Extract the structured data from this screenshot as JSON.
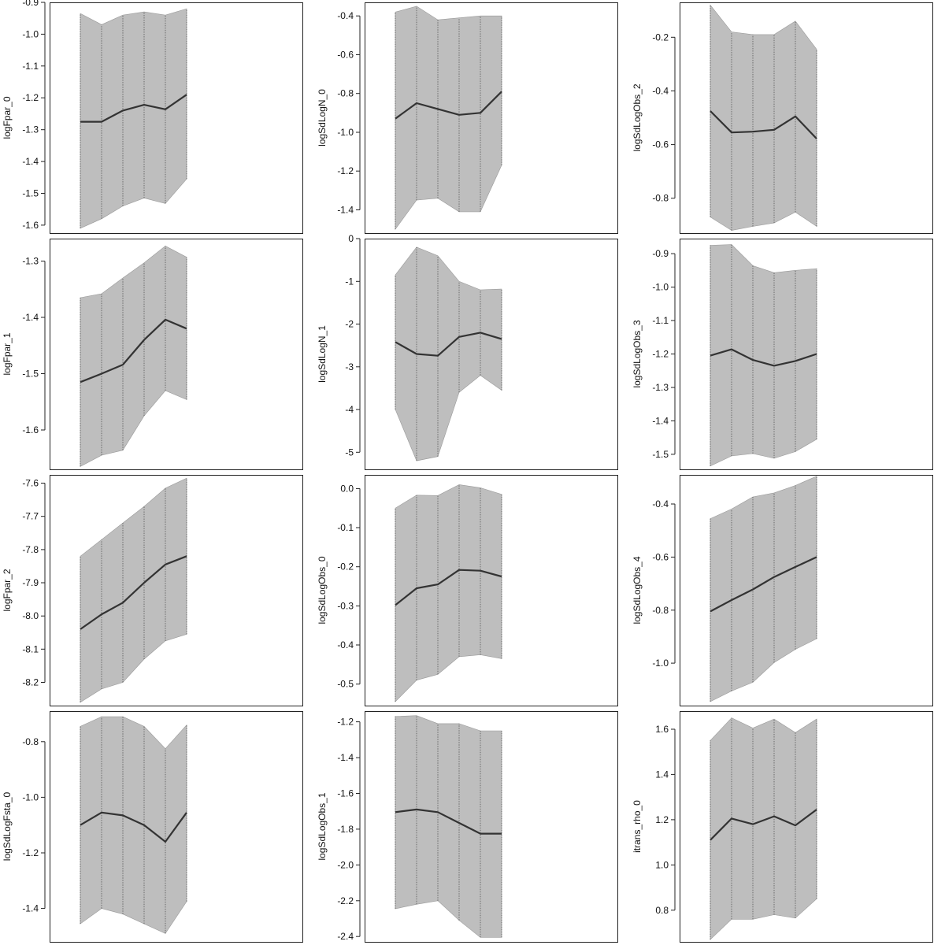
{
  "chart_data": [
    {
      "type": "area",
      "ylabel": "logFpar_0",
      "ylim": [
        -1.625,
        -0.9
      ],
      "yticks": [
        "-0.9",
        "-1.0",
        "-1.1",
        "-1.2",
        "-1.3",
        "-1.4",
        "-1.5",
        "-1.6"
      ],
      "x": [
        1,
        2,
        3,
        4,
        5,
        6
      ],
      "values": [
        -1.275,
        -1.275,
        -1.24,
        -1.222,
        -1.236,
        -1.19
      ],
      "lower": [
        -1.61,
        -1.58,
        -1.54,
        -1.515,
        -1.532,
        -1.455
      ],
      "upper": [
        -0.935,
        -0.97,
        -0.94,
        -0.93,
        -0.94,
        -0.92
      ]
    },
    {
      "type": "area",
      "ylabel": "logSdLogN_0",
      "ylim": [
        -1.52,
        -0.33
      ],
      "yticks": [
        "-0.4",
        "-0.6",
        "-0.8",
        "-1.0",
        "-1.2",
        "-1.4"
      ],
      "x": [
        1,
        2,
        3,
        4,
        5,
        6
      ],
      "values": [
        -0.93,
        -0.85,
        -0.88,
        -0.91,
        -0.9,
        -0.79
      ],
      "lower": [
        -1.5,
        -1.35,
        -1.34,
        -1.41,
        -1.41,
        -1.17
      ],
      "upper": [
        -0.38,
        -0.35,
        -0.42,
        -0.41,
        -0.4,
        -0.4
      ]
    },
    {
      "type": "area",
      "ylabel": "logSdLogObs_2",
      "ylim": [
        -0.93,
        -0.07
      ],
      "yticks": [
        "-0.2",
        "-0.4",
        "-0.6",
        "-0.8"
      ],
      "x": [
        1,
        2,
        3,
        4,
        5,
        6
      ],
      "values": [
        -0.475,
        -0.555,
        -0.552,
        -0.545,
        -0.495,
        -0.578
      ],
      "lower": [
        -0.87,
        -0.92,
        -0.905,
        -0.892,
        -0.852,
        -0.905
      ],
      "upper": [
        -0.08,
        -0.18,
        -0.19,
        -0.19,
        -0.14,
        -0.245
      ]
    },
    {
      "type": "area",
      "ylabel": "logFpar_1",
      "ylim": [
        -1.67,
        -1.26
      ],
      "yticks": [
        "-1.3",
        "-1.4",
        "-1.5",
        "-1.6"
      ],
      "x": [
        1,
        2,
        3,
        4,
        5,
        6
      ],
      "values": [
        -1.515,
        -1.5,
        -1.484,
        -1.44,
        -1.404,
        -1.42
      ],
      "lower": [
        -1.665,
        -1.645,
        -1.636,
        -1.575,
        -1.53,
        -1.546
      ],
      "upper": [
        -1.365,
        -1.358,
        -1.33,
        -1.303,
        -1.273,
        -1.293
      ]
    },
    {
      "type": "area",
      "ylabel": "logSdLogN_1",
      "ylim": [
        -5.4,
        0
      ],
      "yticks": [
        "0",
        "-1",
        "-2",
        "-3",
        "-4",
        "-5"
      ],
      "x": [
        1,
        2,
        3,
        4,
        5,
        6
      ],
      "values": [
        -2.42,
        -2.7,
        -2.74,
        -2.3,
        -2.2,
        -2.35
      ],
      "lower": [
        -4.0,
        -5.2,
        -5.1,
        -3.6,
        -3.2,
        -3.55
      ],
      "upper": [
        -0.85,
        -0.2,
        -0.4,
        -1.0,
        -1.2,
        -1.18
      ]
    },
    {
      "type": "area",
      "ylabel": "logSdLogObs_3",
      "ylim": [
        -1.545,
        -0.855
      ],
      "yticks": [
        "-0.9",
        "-1.0",
        "-1.1",
        "-1.2",
        "-1.3",
        "-1.4",
        "-1.5"
      ],
      "x": [
        1,
        2,
        3,
        4,
        5,
        6
      ],
      "values": [
        -1.205,
        -1.186,
        -1.218,
        -1.235,
        -1.221,
        -1.2
      ],
      "lower": [
        -1.535,
        -1.505,
        -1.498,
        -1.512,
        -1.492,
        -1.455
      ],
      "upper": [
        -0.875,
        -0.873,
        -0.936,
        -0.957,
        -0.95,
        -0.945
      ]
    },
    {
      "type": "area",
      "ylabel": "logFpar_2",
      "ylim": [
        -8.27,
        -7.575
      ],
      "yticks": [
        "-7.6",
        "-7.7",
        "-7.8",
        "-7.9",
        "-8.0",
        "-8.1",
        "-8.2"
      ],
      "x": [
        1,
        2,
        3,
        4,
        5,
        6
      ],
      "values": [
        -8.04,
        -7.995,
        -7.96,
        -7.9,
        -7.845,
        -7.82
      ],
      "lower": [
        -8.26,
        -8.22,
        -8.2,
        -8.13,
        -8.075,
        -8.055
      ],
      "upper": [
        -7.82,
        -7.77,
        -7.72,
        -7.67,
        -7.615,
        -7.585
      ]
    },
    {
      "type": "area",
      "ylabel": "logSdLogObs_0",
      "ylim": [
        -0.555,
        0.035
      ],
      "yticks": [
        "0.0",
        "-0.1",
        "-0.2",
        "-0.3",
        "-0.4",
        "-0.5"
      ],
      "x": [
        1,
        2,
        3,
        4,
        5,
        6
      ],
      "values": [
        -0.298,
        -0.255,
        -0.245,
        -0.208,
        -0.21,
        -0.225
      ],
      "lower": [
        -0.545,
        -0.49,
        -0.475,
        -0.43,
        -0.425,
        -0.435
      ],
      "upper": [
        -0.05,
        -0.017,
        -0.018,
        0.01,
        0.002,
        -0.015
      ]
    },
    {
      "type": "area",
      "ylabel": "logSdLogObs_4",
      "ylim": [
        -1.16,
        -0.29
      ],
      "yticks": [
        "-0.4",
        "-0.6",
        "-0.8",
        "-1.0"
      ],
      "x": [
        1,
        2,
        3,
        4,
        5,
        6
      ],
      "values": [
        -0.805,
        -0.762,
        -0.722,
        -0.675,
        -0.637,
        -0.6
      ],
      "lower": [
        -1.145,
        -1.105,
        -1.072,
        -0.998,
        -0.948,
        -0.908
      ],
      "upper": [
        -0.455,
        -0.419,
        -0.373,
        -0.358,
        -0.33,
        -0.295
      ]
    },
    {
      "type": "area",
      "ylabel": "logSdLogFsta_0",
      "ylim": [
        -1.52,
        -0.69
      ],
      "yticks": [
        "-0.8",
        "-1.0",
        "-1.2",
        "-1.4"
      ],
      "x": [
        1,
        2,
        3,
        4,
        5,
        6
      ],
      "values": [
        -1.1,
        -1.055,
        -1.065,
        -1.1,
        -1.16,
        -1.055
      ],
      "lower": [
        -1.455,
        -1.4,
        -1.42,
        -1.455,
        -1.49,
        -1.375
      ],
      "upper": [
        -0.745,
        -0.71,
        -0.71,
        -0.745,
        -0.825,
        -0.74
      ]
    },
    {
      "type": "area",
      "ylabel": "logSdLogObs_1",
      "ylim": [
        -2.43,
        -1.14
      ],
      "yticks": [
        "-1.2",
        "-1.4",
        "-1.6",
        "-1.8",
        "-2.0",
        "-2.2",
        "-2.4"
      ],
      "x": [
        1,
        2,
        3,
        4,
        5,
        6
      ],
      "values": [
        -1.705,
        -1.69,
        -1.705,
        -1.765,
        -1.825,
        -1.825
      ],
      "lower": [
        -2.245,
        -2.22,
        -2.2,
        -2.31,
        -2.405,
        -2.405
      ],
      "upper": [
        -1.17,
        -1.165,
        -1.21,
        -1.21,
        -1.25,
        -1.25
      ]
    },
    {
      "type": "area",
      "ylabel": "itrans_rho_0",
      "ylim": [
        0.66,
        1.68
      ],
      "yticks": [
        "1.6",
        "1.4",
        "1.2",
        "1.0",
        "0.8"
      ],
      "x": [
        1,
        2,
        3,
        4,
        5,
        6
      ],
      "values": [
        1.11,
        1.205,
        1.18,
        1.215,
        1.175,
        1.245
      ],
      "lower": [
        0.67,
        0.76,
        0.76,
        0.78,
        0.765,
        0.85
      ],
      "upper": [
        1.55,
        1.65,
        1.605,
        1.645,
        1.585,
        1.645
      ]
    }
  ]
}
